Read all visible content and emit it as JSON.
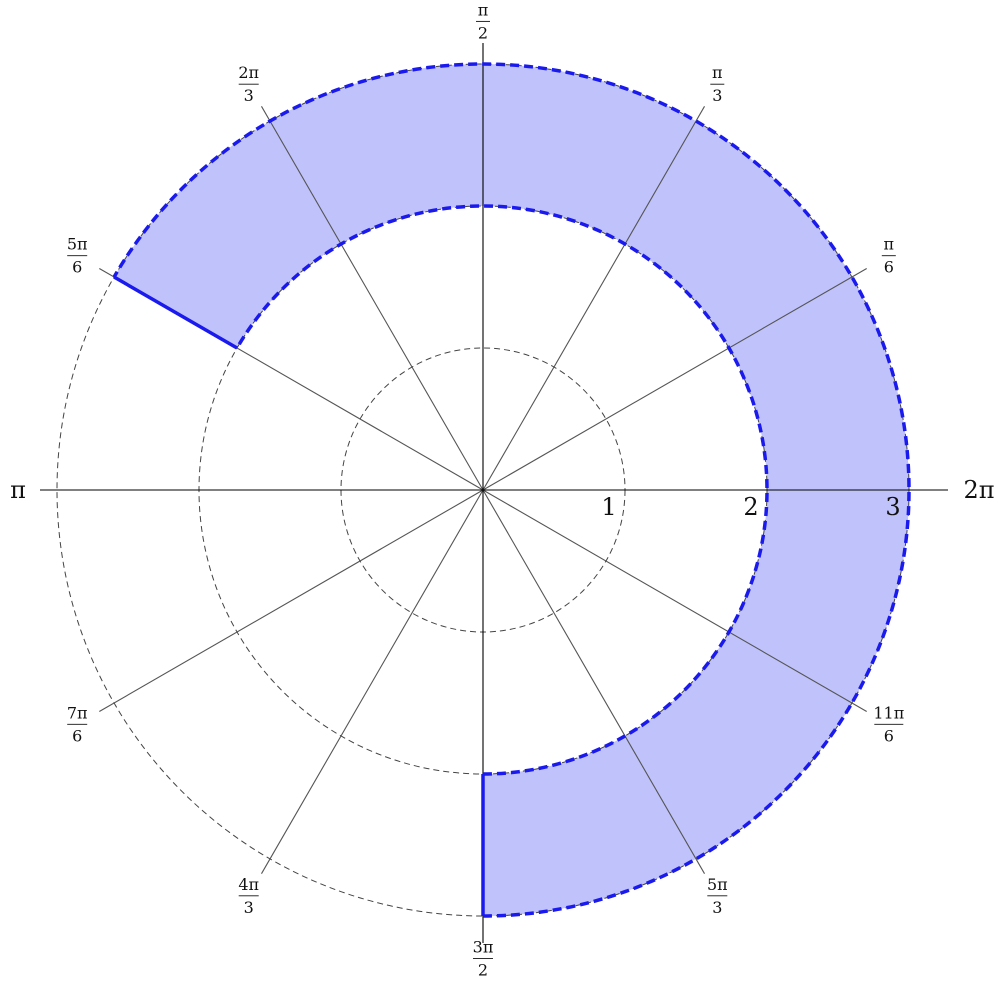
{
  "diagram": {
    "type": "polar-region",
    "region": {
      "r_min": 2,
      "r_max": 3,
      "theta_start": "-π/2",
      "theta_end": "5π/6",
      "fill_color": "#c0c3fb",
      "boundary_color": "#1a1aee",
      "boundary_style": {
        "arcs": "dashed",
        "rays": "solid"
      }
    },
    "radial_circles": [
      1,
      2,
      3
    ],
    "radial_labels": [
      "1",
      "2",
      "3"
    ],
    "spoke_angles_deg": [
      0,
      30,
      60,
      90,
      120,
      150,
      180,
      210,
      240,
      270,
      300,
      330
    ],
    "angle_labels": [
      {
        "id": "zero",
        "deg": 0,
        "type": "plain",
        "text": "2π"
      },
      {
        "id": "pi6",
        "deg": 30,
        "type": "frac",
        "num": "π",
        "den": "6"
      },
      {
        "id": "pi3",
        "deg": 60,
        "type": "frac",
        "num": "π",
        "den": "3"
      },
      {
        "id": "pi2",
        "deg": 90,
        "type": "frac",
        "num": "π",
        "den": "2"
      },
      {
        "id": "2pi3",
        "deg": 120,
        "type": "frac",
        "num": "2π",
        "den": "3"
      },
      {
        "id": "5pi6",
        "deg": 150,
        "type": "frac",
        "num": "5π",
        "den": "6"
      },
      {
        "id": "pi",
        "deg": 180,
        "type": "plain",
        "text": "π"
      },
      {
        "id": "7pi6",
        "deg": 210,
        "type": "frac",
        "num": "7π",
        "den": "6"
      },
      {
        "id": "4pi3",
        "deg": 240,
        "type": "frac",
        "num": "4π",
        "den": "3"
      },
      {
        "id": "3pi2",
        "deg": 270,
        "type": "frac",
        "num": "3π",
        "den": "2"
      },
      {
        "id": "5pi3",
        "deg": 300,
        "type": "frac",
        "num": "5π",
        "den": "3"
      },
      {
        "id": "11pi6",
        "deg": 330,
        "type": "frac",
        "num": "11π",
        "den": "6"
      }
    ],
    "colors": {
      "axis": "#000000",
      "spoke": "#555555",
      "grid_circle": "#444444"
    }
  }
}
